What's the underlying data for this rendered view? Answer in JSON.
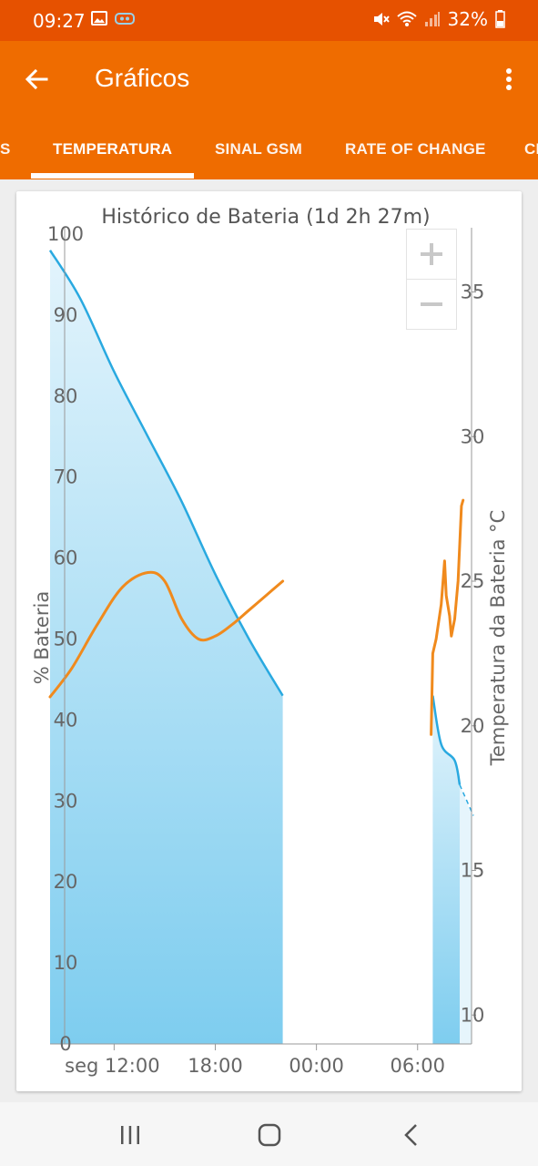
{
  "status": {
    "time": "09:27",
    "battery": "32%"
  },
  "appbar": {
    "title": "Gráficos"
  },
  "tabs": [
    {
      "label": "S"
    },
    {
      "label": "TEMPERATURA",
      "active": true
    },
    {
      "label": "SINAL GSM"
    },
    {
      "label": "RATE OF CHANGE"
    },
    {
      "label": "CI"
    }
  ],
  "chart_data": {
    "type": "line",
    "title": "Histórico de Bateria (1d 2h 27m)",
    "ylabel_left": "% Bateria",
    "ylabel_right": "Temperatura da Bateria °C",
    "ylim_left": [
      0,
      100
    ],
    "ylim_right": [
      9,
      37
    ],
    "yticks_left": [
      "0",
      "10",
      "20",
      "30",
      "40",
      "50",
      "60",
      "70",
      "80",
      "90",
      "100"
    ],
    "yticks_right": [
      "10",
      "15",
      "20",
      "25",
      "30",
      "35"
    ],
    "xticks": [
      "seg 12:00",
      "18:00",
      "00:00",
      "06:00"
    ],
    "xtick_hours": [
      12,
      18,
      24,
      30
    ],
    "xlim_hours": [
      8.2,
      33.2
    ],
    "grid": false,
    "series": [
      {
        "name": "% Bateria",
        "color": "#29a9e0",
        "fill": true,
        "segments": [
          [
            [
              8.2,
              98
            ],
            [
              10,
              92
            ],
            [
              12,
              83
            ],
            [
              14,
              75
            ],
            [
              16,
              67
            ],
            [
              18,
              58
            ],
            [
              20,
              50
            ],
            [
              22,
              43
            ]
          ],
          [
            [
              30.9,
              43
            ],
            [
              31.4,
              37
            ],
            [
              32.2,
              35
            ],
            [
              32.5,
              32
            ]
          ]
        ]
      },
      {
        "name": "Temperatura da Bateria °C",
        "color": "#f08a1d",
        "segments": [
          [
            [
              8.2,
              21.0
            ],
            [
              9.5,
              22.0
            ],
            [
              11,
              23.5
            ],
            [
              12.5,
              24.8
            ],
            [
              14,
              25.3
            ],
            [
              15,
              25.0
            ],
            [
              16,
              23.7
            ],
            [
              17,
              23.0
            ],
            [
              18,
              23.1
            ],
            [
              19,
              23.5
            ],
            [
              20,
              24.0
            ],
            [
              21,
              24.5
            ],
            [
              22,
              25.0
            ]
          ],
          [
            [
              30.8,
              19.7
            ],
            [
              30.9,
              22.5
            ],
            [
              31.1,
              23.0
            ],
            [
              31.4,
              24.2
            ],
            [
              31.6,
              25.7
            ],
            [
              31.7,
              24.5
            ],
            [
              31.9,
              23.8
            ],
            [
              32.0,
              23.1
            ],
            [
              32.2,
              23.7
            ],
            [
              32.4,
              25.0
            ],
            [
              32.6,
              27.6
            ],
            [
              32.7,
              27.8
            ]
          ]
        ]
      }
    ]
  }
}
